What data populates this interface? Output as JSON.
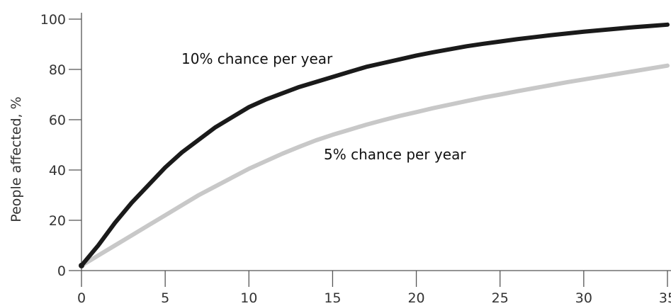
{
  "chart_data": {
    "type": "line",
    "title": "",
    "xlabel": "",
    "ylabel": "People affected, %",
    "xlim": [
      0,
      35
    ],
    "ylim": [
      0,
      100
    ],
    "x_ticks": [
      0,
      5,
      10,
      15,
      20,
      25,
      30,
      35
    ],
    "y_ticks": [
      0,
      20,
      40,
      60,
      80,
      100
    ],
    "grid": false,
    "legend": "none",
    "x": [
      0,
      1,
      2,
      3,
      4,
      5,
      6,
      7,
      8,
      9,
      10,
      11,
      12,
      13,
      14,
      15,
      16,
      17,
      18,
      19,
      20,
      21,
      22,
      23,
      24,
      25,
      26,
      27,
      28,
      29,
      30,
      31,
      32,
      33,
      34,
      35
    ],
    "series": [
      {
        "name": "10% chance per year",
        "color": "#1a1a1a",
        "values": [
          2,
          10,
          19,
          27,
          34,
          41,
          47,
          52,
          57,
          61,
          65,
          68,
          70.5,
          73,
          75,
          77,
          79,
          81,
          82.5,
          84,
          85.5,
          86.8,
          88,
          89.2,
          90.2,
          91.1,
          92,
          92.8,
          93.6,
          94.3,
          95,
          95.6,
          96.2,
          96.8,
          97.3,
          97.8
        ]
      },
      {
        "name": "5% chance per year",
        "color": "#c8c8c8",
        "values": [
          2,
          6,
          10,
          14,
          18,
          22,
          26,
          30,
          33.5,
          37,
          40.5,
          43.5,
          46.5,
          49.2,
          51.8,
          54,
          56,
          58,
          59.8,
          61.5,
          63,
          64.6,
          66,
          67.4,
          68.8,
          70,
          71.3,
          72.5,
          73.7,
          74.9,
          76,
          77.1,
          78.2,
          79.3,
          80.4,
          81.5
        ]
      }
    ]
  }
}
